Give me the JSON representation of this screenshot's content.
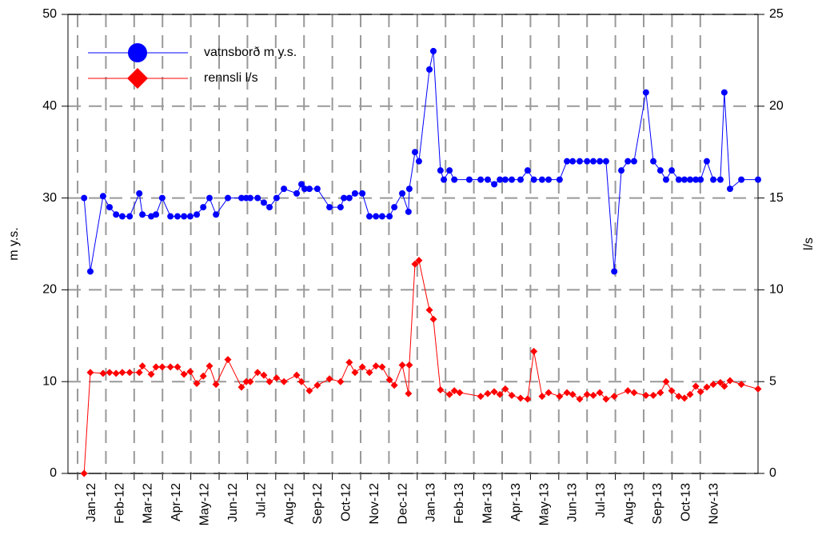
{
  "chart_data": {
    "type": "line",
    "xlabel": null,
    "ylabel": "m y.s.",
    "y2label": "l/s",
    "xlim": [
      -0.34,
      24.04
    ],
    "xticks": [
      {
        "value": 0,
        "label": "Jan-12"
      },
      {
        "value": 1,
        "label": "Feb-12"
      },
      {
        "value": 2,
        "label": "Mar-12"
      },
      {
        "value": 3,
        "label": "Apr-12"
      },
      {
        "value": 4,
        "label": "May-12"
      },
      {
        "value": 5,
        "label": "Jun-12"
      },
      {
        "value": 6,
        "label": "Jul-12"
      },
      {
        "value": 7,
        "label": "Aug-12"
      },
      {
        "value": 8,
        "label": "Sep-12"
      },
      {
        "value": 9,
        "label": "Oct-12"
      },
      {
        "value": 10,
        "label": "Nov-12"
      },
      {
        "value": 11,
        "label": "Dec-12"
      },
      {
        "value": 12,
        "label": "Jan-13"
      },
      {
        "value": 13,
        "label": "Feb-13"
      },
      {
        "value": 14,
        "label": "Mar-13"
      },
      {
        "value": 15,
        "label": "Apr-13"
      },
      {
        "value": 16,
        "label": "May-13"
      },
      {
        "value": 17,
        "label": "Jun-13"
      },
      {
        "value": 18,
        "label": "Jul-13"
      },
      {
        "value": 19,
        "label": "Aug-13"
      },
      {
        "value": 20,
        "label": "Sep-13"
      },
      {
        "value": 21,
        "label": "Oct-13"
      },
      {
        "value": 22,
        "label": "Nov-13"
      }
    ],
    "ylim": [
      0,
      50
    ],
    "yticks": [
      0,
      10,
      20,
      30,
      40,
      50
    ],
    "y2lim": [
      0,
      25
    ],
    "y2ticks": [
      0,
      5,
      10,
      15,
      20,
      25
    ],
    "grid": true,
    "legend": "upper left",
    "series": [
      {
        "name": "vatnsborð m y.s.",
        "color": "#0000ff",
        "marker": "circle",
        "x": [
          0.23,
          0.45,
          0.9,
          1.13,
          1.36,
          1.58,
          1.84,
          2.18,
          2.29,
          2.6,
          2.77,
          2.99,
          3.28,
          3.53,
          3.76,
          3.98,
          4.21,
          4.44,
          4.66,
          4.89,
          5.31,
          5.79,
          5.96,
          6.1,
          6.36,
          6.58,
          6.78,
          7.03,
          7.29,
          7.74,
          7.91,
          8.02,
          8.19,
          8.47,
          8.9,
          9.29,
          9.41,
          9.6,
          9.8,
          10.06,
          10.31,
          10.54,
          10.76,
          11.02,
          11.19,
          11.47,
          11.69,
          11.72,
          11.92,
          12.06,
          12.43,
          12.57,
          12.82,
          12.94,
          13.14,
          13.31,
          13.84,
          14.24,
          14.49,
          14.72,
          14.92,
          15.11,
          15.34,
          15.65,
          15.9,
          16.12,
          16.41,
          16.64,
          17.03,
          17.29,
          17.49,
          17.74,
          18,
          18.22,
          18.45,
          18.67,
          18.96,
          19.21,
          19.44,
          19.66,
          20.08,
          20.34,
          20.59,
          20.79,
          20.99,
          21.24,
          21.44,
          21.64,
          21.84,
          22.01,
          22.23,
          22.46,
          22.71,
          22.85,
          23.05,
          23.45,
          24.04
        ],
        "values": [
          30,
          22,
          30.2,
          29,
          28.2,
          28,
          28,
          30.5,
          28.2,
          28,
          28.2,
          30,
          28,
          28,
          28,
          28,
          28.2,
          29,
          30,
          28.2,
          30,
          30,
          30,
          30,
          30,
          29.5,
          29,
          30,
          31,
          30.5,
          31.5,
          31,
          31,
          31,
          29,
          29,
          30,
          30,
          30.5,
          30.5,
          28,
          28,
          28,
          28,
          29,
          30.5,
          28.5,
          31,
          35,
          34,
          44,
          46,
          33,
          32,
          33,
          32,
          32,
          32,
          32,
          31.5,
          32,
          32,
          32,
          32,
          33,
          32,
          32,
          32,
          32,
          34,
          34,
          34,
          34,
          34,
          34,
          34,
          22,
          33,
          34,
          34,
          41.5,
          34,
          33,
          32,
          33,
          32,
          32,
          32,
          32,
          32,
          34,
          32,
          32,
          41.5,
          31,
          32,
          32
        ]
      },
      {
        "name": "rennsli l/s",
        "color": "#ff0000",
        "marker": "diamond",
        "axis": "y2",
        "x": [
          0.23,
          0.45,
          0.9,
          1.13,
          1.36,
          1.58,
          1.84,
          2.18,
          2.29,
          2.6,
          2.77,
          2.99,
          3.28,
          3.53,
          3.76,
          3.98,
          4.21,
          4.44,
          4.66,
          4.89,
          5.31,
          5.79,
          5.96,
          6.1,
          6.36,
          6.58,
          6.78,
          7.03,
          7.29,
          7.74,
          7.91,
          8.19,
          8.47,
          8.9,
          9.29,
          9.6,
          9.8,
          10.06,
          10.31,
          10.54,
          10.76,
          11.02,
          11.19,
          11.47,
          11.69,
          11.72,
          11.92,
          12.06,
          12.43,
          12.57,
          12.82,
          13.14,
          13.31,
          13.5,
          14.24,
          14.49,
          14.72,
          14.92,
          15.11,
          15.34,
          15.65,
          15.9,
          16.12,
          16.41,
          16.64,
          17.03,
          17.29,
          17.49,
          17.74,
          18,
          18.22,
          18.45,
          18.67,
          18.96,
          19.44,
          19.66,
          20.08,
          20.34,
          20.59,
          20.79,
          20.99,
          21.24,
          21.44,
          21.64,
          21.84,
          22.01,
          22.23,
          22.46,
          22.71,
          22.85,
          23.05,
          23.45,
          24.04
        ],
        "values": [
          0,
          5.5,
          5.45,
          5.5,
          5.45,
          5.5,
          5.5,
          5.5,
          5.85,
          5.4,
          5.8,
          5.8,
          5.8,
          5.8,
          5.4,
          5.55,
          4.9,
          5.3,
          5.85,
          4.85,
          6.2,
          4.7,
          5,
          5,
          5.5,
          5.35,
          5,
          5.2,
          5,
          5.35,
          5,
          4.5,
          4.8,
          5.15,
          5,
          6.05,
          5.5,
          5.8,
          5.5,
          5.85,
          5.8,
          5.1,
          4.8,
          5.9,
          4.35,
          5.9,
          11.4,
          11.6,
          8.9,
          8.4,
          4.55,
          4.3,
          4.5,
          4.4,
          4.2,
          4.35,
          4.45,
          4.3,
          4.6,
          4.25,
          4.1,
          4.05,
          6.65,
          4.2,
          4.4,
          4.2,
          4.4,
          4.3,
          4.05,
          4.3,
          4.25,
          4.4,
          4.05,
          4.2,
          4.5,
          4.4,
          4.25,
          4.25,
          4.4,
          5,
          4.5,
          4.2,
          4.1,
          4.3,
          4.75,
          4.45,
          4.7,
          4.85,
          4.95,
          4.75,
          5.05,
          4.85,
          4.6
        ]
      }
    ]
  }
}
